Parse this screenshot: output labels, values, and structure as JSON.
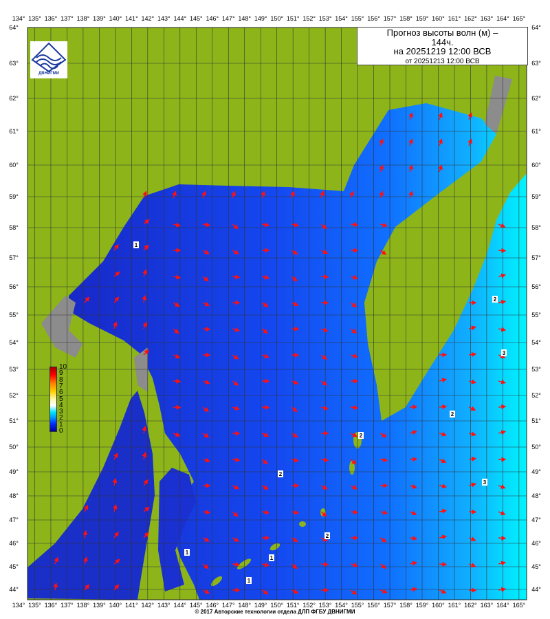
{
  "title": {
    "line1": "Прогноз высоты волн (м) –",
    "line2": "144ч.",
    "line3": "на 20251219 12:00 ВСВ",
    "line4": "от 20251213 12:00 ВСВ"
  },
  "logo": {
    "text": "ДВНИГМИ"
  },
  "legend": {
    "ticks": [
      "10",
      "9",
      "8",
      "7",
      "6",
      "5",
      "4",
      "3",
      "2",
      "1",
      "0"
    ]
  },
  "longitude_labels": [
    "134°",
    "135°",
    "136°",
    "137°",
    "138°",
    "139°",
    "140°",
    "141°",
    "142°",
    "143°",
    "144°",
    "145°",
    "146°",
    "147°",
    "148°",
    "149°",
    "150°",
    "151°",
    "152°",
    "153°",
    "154°",
    "155°",
    "156°",
    "157°",
    "158°",
    "159°",
    "160°",
    "161°",
    "162°",
    "163°",
    "164°",
    "165°"
  ],
  "latitude_labels": [
    "64°",
    "63°",
    "62°",
    "61°",
    "60°",
    "59°",
    "58°",
    "57°",
    "56°",
    "55°",
    "54°",
    "53°",
    "52°",
    "51°",
    "50°",
    "49°",
    "48°",
    "47°",
    "46°",
    "45°",
    "44°"
  ],
  "contour_labels": [
    "1",
    "1",
    "1",
    "1",
    "2",
    "2",
    "2",
    "2",
    "2",
    "3",
    "3"
  ],
  "colors": {
    "land": "#8db51a",
    "lake": "#8c8c8c",
    "sea_low": "#1030e0",
    "sea_high": "#00f0ff",
    "arrow": "#ff1010",
    "grid": "#333333"
  },
  "footer": "© 2017 Авторские технологии отдела ДЛП ФГБУ ДВНИГМИ"
}
